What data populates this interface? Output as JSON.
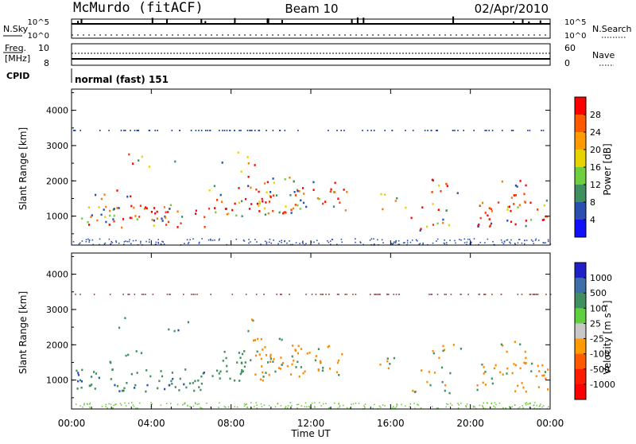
{
  "header": {
    "station": "McMurdo (fitACF)",
    "beam": "Beam 10",
    "date": "02/Apr/2010"
  },
  "top_panel": {
    "nsky_label": "N.Sky",
    "nsearch_label": "N.Search",
    "y_tick_high": "10^5",
    "y_tick_low": "10^0",
    "freq_label_1": "Freq.",
    "freq_label_2": "[MHz]",
    "freq_ticks": [
      "10",
      "8"
    ],
    "nave_label": "Nave",
    "nave_ticks": [
      "60",
      "0"
    ],
    "cpid_label": "CPID",
    "cpid_text": "normal (fast) 151"
  },
  "chart_data": [
    {
      "type": "heatmap",
      "name": "power",
      "ylabel": "Slant Range [km]",
      "xlabel": "",
      "ylim": [
        180,
        4600
      ],
      "yticks": [
        1000,
        2000,
        3000,
        4000
      ],
      "colorbar": {
        "label": "Power [dB]",
        "ticks": [
          "28",
          "24",
          "20",
          "16",
          "12",
          "8",
          "4"
        ],
        "colors": [
          "#ff0000",
          "#ff5a00",
          "#ff9a00",
          "#e8d200",
          "#6fcf3f",
          "#3f8f5f",
          "#2a4fb0",
          "#1010ff"
        ]
      }
    },
    {
      "type": "heatmap",
      "name": "velocity",
      "ylabel": "Slant Range [km]",
      "xlabel": "Time UT",
      "ylim": [
        180,
        4600
      ],
      "yticks": [
        1000,
        2000,
        3000,
        4000
      ],
      "xticks": [
        "00:00",
        "04:00",
        "08:00",
        "12:00",
        "16:00",
        "20:00",
        "00:00"
      ],
      "colorbar": {
        "label": "Velocity [m s⁻¹]",
        "ticks": [
          "1000",
          "500",
          "100",
          "25",
          "-25",
          "-100",
          "-500",
          "-1000"
        ],
        "colors": [
          "#2020c8",
          "#3f6fa8",
          "#3f8f5f",
          "#5fd03f",
          "#c8c8c8",
          "#ff9a00",
          "#ff5a00",
          "#ff1a00",
          "#ff0000"
        ]
      }
    }
  ]
}
